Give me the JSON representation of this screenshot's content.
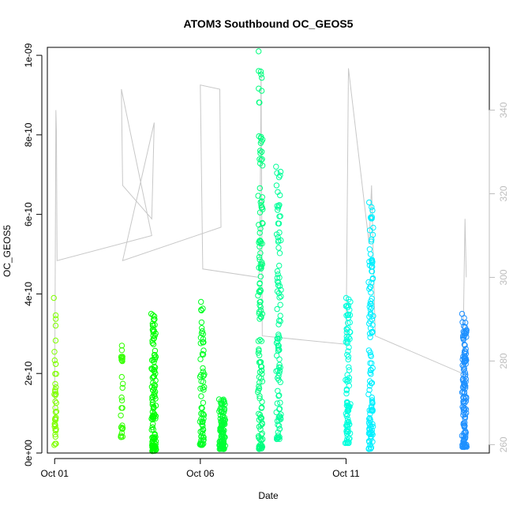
{
  "chart_data": {
    "type": "scatter",
    "title": "ATOM3 Southbound OC_GEOS5",
    "xlabel": "Date",
    "ylabel": "OC_GEOS5",
    "x_axis": {
      "type": "date",
      "range": [
        "2016-09-30T18:00",
        "2016-10-15T22:00"
      ],
      "ticks": [
        {
          "value": "2016-10-01",
          "label": "Oct 01"
        },
        {
          "value": "2016-10-06",
          "label": "Oct 06"
        },
        {
          "value": "2016-10-11",
          "label": "Oct 11"
        }
      ]
    },
    "y_axis": {
      "range": [
        0,
        1.02e-09
      ],
      "ticks": [
        {
          "value": 0,
          "label": "0e+00"
        },
        {
          "value": 2e-10,
          "label": "2e-10"
        },
        {
          "value": 4e-10,
          "label": "4e-10"
        },
        {
          "value": 6e-10,
          "label": "6e-10"
        },
        {
          "value": 8e-10,
          "label": "8e-10"
        },
        {
          "value": 1e-09,
          "label": "1e-09"
        }
      ]
    },
    "y2_axis": {
      "range": [
        258,
        355
      ],
      "color": "#bdbdbd",
      "ticks": [
        {
          "value": 260,
          "label": "260"
        },
        {
          "value": 280,
          "label": "280"
        },
        {
          "value": 300,
          "label": "300"
        },
        {
          "value": 320,
          "label": "320"
        },
        {
          "value": 340,
          "label": "340"
        }
      ]
    },
    "grid": false,
    "legend": "none",
    "series": [
      {
        "role": "OC_GEOS5 points",
        "marker": "open-circle",
        "color_by": "time",
        "palette": [
          "#7fff00",
          "#00ff00",
          "#00ff7f",
          "#00ffff",
          "#1e90ff"
        ],
        "flight_segments": [
          {
            "start": "2016-10-01T00:00",
            "end": "2016-10-01T01:00",
            "ymin": 2e-11,
            "ymax": 3.9e-10,
            "count": 40,
            "color": "#7fff00"
          },
          {
            "start": "2016-10-03T07:00",
            "end": "2016-10-03T08:00",
            "ymin": 4e-11,
            "ymax": 2.7e-10,
            "count": 30,
            "color": "#33ff00"
          },
          {
            "start": "2016-10-04T08:00",
            "end": "2016-10-04T11:00",
            "ymin": 5e-12,
            "ymax": 3.5e-10,
            "count": 120,
            "color": "#00ff00"
          },
          {
            "start": "2016-10-06T00:00",
            "end": "2016-10-06T03:00",
            "ymin": 2e-11,
            "ymax": 3.8e-10,
            "count": 70,
            "color": "#00ff22"
          },
          {
            "start": "2016-10-06T16:00",
            "end": "2016-10-06T20:00",
            "ymin": 1e-11,
            "ymax": 1.35e-10,
            "count": 110,
            "color": "#00ff33"
          },
          {
            "start": "2016-10-08T00:00",
            "end": "2016-10-08T03:00",
            "ymin": 1e-11,
            "ymax": 1.01e-09,
            "count": 140,
            "color": "#00ff7f"
          },
          {
            "start": "2016-10-08T15:00",
            "end": "2016-10-08T18:00",
            "ymin": 3.5e-11,
            "ymax": 7.2e-10,
            "count": 100,
            "color": "#00ff99"
          },
          {
            "start": "2016-10-11T00:00",
            "end": "2016-10-11T03:00",
            "ymin": 2.5e-11,
            "ymax": 3.9e-10,
            "count": 90,
            "color": "#00ffdd"
          },
          {
            "start": "2016-10-11T19:00",
            "end": "2016-10-11T22:00",
            "ymin": 1e-11,
            "ymax": 6.3e-10,
            "count": 120,
            "color": "#00f0ff"
          },
          {
            "start": "2016-10-15T00:00",
            "end": "2016-10-15T03:00",
            "ymin": 1.5e-11,
            "ymax": 3.5e-10,
            "count": 130,
            "color": "#1e90ff"
          }
        ]
      },
      {
        "role": "secondary-axis line",
        "color": "#c8c8c8",
        "path": [
          [
            "2016-10-01T00:00",
            265
          ],
          [
            "2016-10-01T01:00",
            340
          ],
          [
            "2016-10-01T01:30",
            335
          ],
          [
            "2016-10-01T02:00",
            304
          ],
          [
            "2016-10-04T08:00",
            310
          ],
          [
            "2016-10-03T07:00",
            345
          ],
          [
            "2016-10-03T08:00",
            322
          ],
          [
            "2016-10-04T08:00",
            314
          ],
          [
            "2016-10-04T10:00",
            337
          ],
          [
            "2016-10-03T08:00",
            304
          ],
          [
            "2016-10-06T17:00",
            312
          ],
          [
            "2016-10-06T16:00",
            345
          ],
          [
            "2016-10-06T00:00",
            346
          ],
          [
            "2016-10-06T02:00",
            302
          ],
          [
            "2016-10-08T00:00",
            300
          ],
          [
            "2016-10-08T01:00",
            303
          ],
          [
            "2016-10-08T02:00",
            350
          ],
          [
            "2016-10-08T03:00",
            286
          ],
          [
            "2016-10-11T00:00",
            284
          ],
          [
            "2016-10-11T02:00",
            350
          ],
          [
            "2016-10-11T19:00",
            308
          ],
          [
            "2016-10-11T21:00",
            322
          ],
          [
            "2016-10-12T00:00",
            286
          ],
          [
            "2016-10-15T00:00",
            277
          ],
          [
            "2016-10-15T02:00",
            314
          ],
          [
            "2016-10-15T03:00",
            300
          ]
        ]
      }
    ]
  }
}
